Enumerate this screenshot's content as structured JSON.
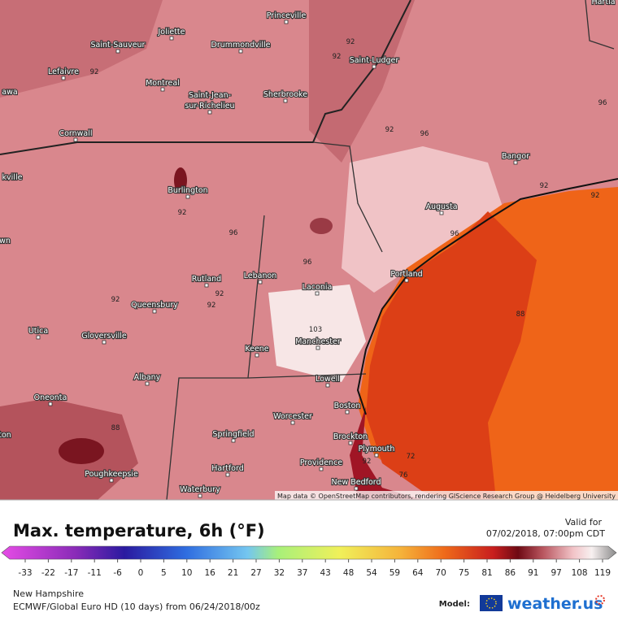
{
  "map": {
    "places": [
      "Princeville",
      "Joliette",
      "Drummondville",
      "Saint-Sauveur",
      "Saint-Ludger",
      "Lefaivre",
      "Montreal",
      "Saint-Jean-",
      "sur-Richelieu",
      "Sherbrooke",
      "Cornwall",
      "Bangor",
      "Augusta",
      "Burlington",
      "Lebanon",
      "Portland",
      "Laconia",
      "Rutland",
      "Queensbury",
      "Utica",
      "Gloversville",
      "Manchester",
      "Keene",
      "Albany",
      "Lowell",
      "Oneonta",
      "Boston",
      "Worcester",
      "Springfield",
      "Brockton",
      "Plymouth",
      "Poughkeepsie",
      "Hartford",
      "Providence",
      "New Bedford",
      "Waterbury",
      "awa",
      "kville",
      "wn",
      "ton",
      "Hartla"
    ],
    "contour_labels": [
      "92",
      "92",
      "92",
      "96",
      "92",
      "96",
      "92",
      "92",
      "92",
      "96",
      "96",
      "96",
      "92",
      "92",
      "92",
      "103",
      "88",
      "88",
      "72",
      "76",
      "92"
    ],
    "attribution": "Map data © OpenStreetMap contributors, rendering GIScience Research Group @ Heidelberg University"
  },
  "legend": {
    "title": "Max. temperature, 6h (°F)",
    "valid_label": "Valid for",
    "valid_time": "07/02/2018, 07:00pm CDT",
    "ticks": [
      -33,
      -22,
      -17,
      -11,
      -6,
      0,
      5,
      10,
      16,
      21,
      27,
      32,
      37,
      43,
      48,
      54,
      59,
      64,
      70,
      75,
      81,
      86,
      91,
      97,
      108,
      119
    ]
  },
  "footer": {
    "region": "New Hampshire",
    "model_run": "ECMWF/Global Euro HD (10 days) from 06/24/2018/00z",
    "model_label": "Model:",
    "brand": "weather.us"
  }
}
